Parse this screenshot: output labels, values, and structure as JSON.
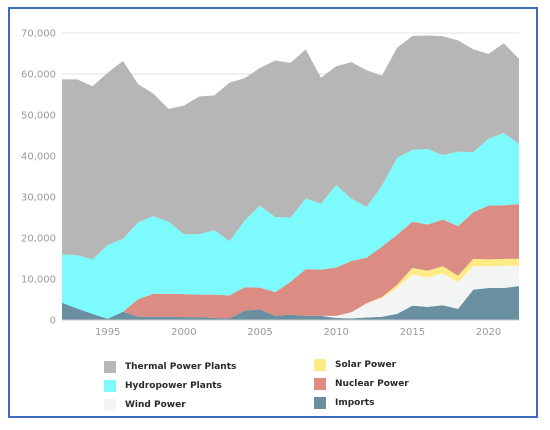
{
  "chart_data": {
    "type": "area",
    "stacked": true,
    "title": "",
    "xlabel": "",
    "ylabel": "",
    "ylim": [
      0,
      70000
    ],
    "grid": true,
    "legend_position": "bottom",
    "x": [
      1992,
      1993,
      1994,
      1995,
      1996,
      1997,
      1998,
      1999,
      2000,
      2001,
      2002,
      2003,
      2004,
      2005,
      2006,
      2007,
      2008,
      2009,
      2010,
      2011,
      2012,
      2013,
      2014,
      2015,
      2016,
      2017,
      2018,
      2019,
      2020,
      2021,
      2022
    ],
    "x_ticks": [
      "1995",
      "2000",
      "2005",
      "2010",
      "2015",
      "2020"
    ],
    "y_ticks": [
      "0",
      "10,000",
      "20,000",
      "30,000",
      "40,000",
      "50,000",
      "60,000",
      "70,000"
    ],
    "series": [
      {
        "name": "Imports",
        "color": "#6a8fa0",
        "values": [
          4200,
          2800,
          1500,
          300,
          2000,
          800,
          800,
          800,
          700,
          700,
          500,
          400,
          2300,
          2600,
          1000,
          1300,
          1000,
          1000,
          500,
          400,
          600,
          800,
          1500,
          3500,
          3200,
          3600,
          2700,
          7400,
          7800,
          7800,
          8300
        ]
      },
      {
        "name": "Wind Power",
        "color": "#f3f4f4",
        "values": [
          0,
          0,
          0,
          0,
          0,
          0,
          0,
          0,
          0,
          0,
          0,
          0,
          0,
          0,
          0,
          0,
          0,
          0,
          500,
          1500,
          3500,
          4500,
          6300,
          7600,
          7100,
          7800,
          6500,
          5800,
          5300,
          5400,
          4900
        ]
      },
      {
        "name": "Solar Power",
        "color": "#ffec86",
        "values": [
          0,
          0,
          0,
          0,
          0,
          0,
          0,
          0,
          0,
          0,
          0,
          0,
          0,
          0,
          0,
          0,
          0,
          0,
          0,
          0,
          0,
          300,
          800,
          1600,
          1700,
          1700,
          1600,
          1700,
          1700,
          1700,
          1700
        ]
      },
      {
        "name": "Nuclear Power",
        "color": "#db8d84",
        "values": [
          0,
          0,
          0,
          0,
          0,
          4300,
          5600,
          5600,
          5600,
          5500,
          5700,
          5600,
          5700,
          5300,
          5800,
          8000,
          11400,
          11300,
          11800,
          12500,
          11100,
          12300,
          12200,
          11300,
          11300,
          11400,
          12100,
          11400,
          13100,
          13100,
          13400
        ]
      },
      {
        "name": "Hydropower Plants",
        "color": "#7dfbfc",
        "values": [
          11800,
          13000,
          13300,
          18000,
          17800,
          18700,
          18900,
          17600,
          14600,
          14700,
          15700,
          13200,
          16300,
          20000,
          18300,
          15700,
          17200,
          16100,
          20100,
          15200,
          12400,
          14800,
          18800,
          17500,
          18400,
          15700,
          18200,
          14600,
          16300,
          17600,
          14700
        ]
      },
      {
        "name": "Thermal Power Plants",
        "color": "#b6b6b6",
        "values": [
          42700,
          42900,
          42200,
          42000,
          43400,
          33700,
          29900,
          27500,
          31400,
          33600,
          32900,
          38700,
          34700,
          33600,
          38200,
          37700,
          36400,
          30700,
          29000,
          33300,
          33300,
          26900,
          26800,
          27800,
          27700,
          29000,
          27100,
          25100,
          20700,
          21900,
          20700
        ]
      }
    ],
    "legend": [
      {
        "name": "Thermal Power Plants",
        "color": "#b6b6b6"
      },
      {
        "name": "Hydropower Plants",
        "color": "#7dfbfc"
      },
      {
        "name": "Wind Power",
        "color": "#f3f4f4"
      },
      {
        "name": "Solar Power",
        "color": "#ffec86"
      },
      {
        "name": "Nuclear Power",
        "color": "#db8d84"
      },
      {
        "name": "Imports",
        "color": "#6a8fa0"
      }
    ]
  }
}
